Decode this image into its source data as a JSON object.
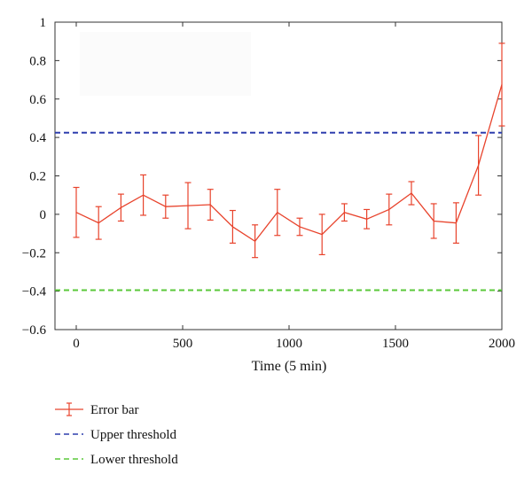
{
  "chart_data": {
    "type": "line",
    "title": "",
    "xlabel": "Time (5 min)",
    "ylabel": "",
    "xlim": [
      -100,
      2000
    ],
    "ylim": [
      -0.6,
      1.0
    ],
    "xticks": [
      0,
      500,
      1000,
      1500,
      2000
    ],
    "yticks": [
      -0.6,
      -0.4,
      -0.2,
      0,
      0.2,
      0.4,
      0.6,
      0.8,
      1.0
    ],
    "xtick_labels": [
      "0",
      "500",
      "1000",
      "1500",
      "2000"
    ],
    "ytick_labels": [
      "−0.6",
      "−0.4",
      "−0.2",
      "0",
      "0.2",
      "0.4",
      "0.6",
      "0.8",
      "1"
    ],
    "grid": false,
    "legend_position": "bottom-left",
    "series": [
      {
        "name": "Error bar",
        "color": "#e8432c",
        "style": "solid-with-errorbars",
        "x": [
          0,
          105,
          210,
          315,
          420,
          525,
          630,
          735,
          840,
          945,
          1050,
          1155,
          1260,
          1365,
          1470,
          1575,
          1680,
          1785,
          1890,
          2000
        ],
        "y": [
          0.01,
          -0.045,
          0.035,
          0.1,
          0.04,
          0.045,
          0.05,
          -0.065,
          -0.14,
          0.01,
          -0.065,
          -0.105,
          0.01,
          -0.025,
          0.025,
          0.11,
          -0.035,
          -0.045,
          0.255,
          0.675
        ],
        "err": [
          0.13,
          0.085,
          0.07,
          0.105,
          0.06,
          0.12,
          0.08,
          0.085,
          0.085,
          0.12,
          0.045,
          0.105,
          0.045,
          0.05,
          0.08,
          0.06,
          0.09,
          0.105,
          0.155,
          0.215
        ]
      },
      {
        "name": "Upper threshold",
        "color": "#2e3fae",
        "style": "dashed",
        "y_constant": 0.425
      },
      {
        "name": "Lower threshold",
        "color": "#5ac83a",
        "style": "dashed",
        "y_constant": -0.395
      }
    ]
  }
}
